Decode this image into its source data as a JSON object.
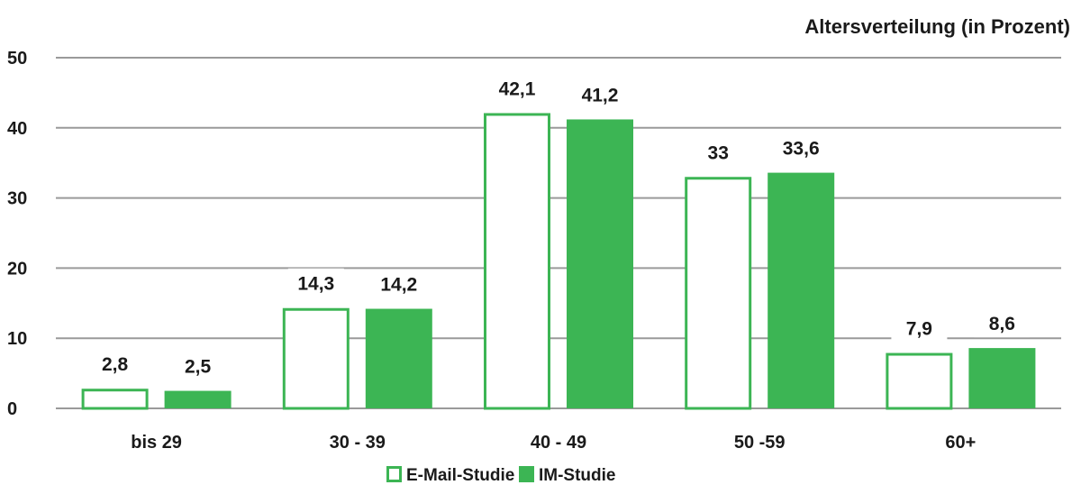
{
  "chart_data": {
    "type": "bar",
    "title": "Altersverteilung (in Prozent)",
    "xlabel": "",
    "ylabel": "",
    "categories": [
      "bis 29",
      "30 - 39",
      "40 - 49",
      "50 -59",
      "60+"
    ],
    "series": [
      {
        "name": "E-Mail-Studie",
        "values": [
          2.8,
          14.3,
          42.1,
          33,
          7.9
        ],
        "labels": [
          "2,8",
          "14,3",
          "42,1",
          "33",
          "7,9"
        ],
        "style": "outline"
      },
      {
        "name": "IM-Studie",
        "values": [
          2.5,
          14.2,
          41.2,
          33.6,
          8.6
        ],
        "labels": [
          "2,5",
          "14,2",
          "41,2",
          "33,6",
          "8,6"
        ],
        "style": "filled"
      }
    ],
    "ylim": [
      0,
      50
    ],
    "yticks": [
      0,
      10,
      20,
      30,
      40,
      50
    ],
    "grid": true,
    "legend_position": "bottom",
    "colors": {
      "bar": "#3cb554",
      "grid": "#9a9a9a",
      "text": "#1a1a1a"
    }
  }
}
